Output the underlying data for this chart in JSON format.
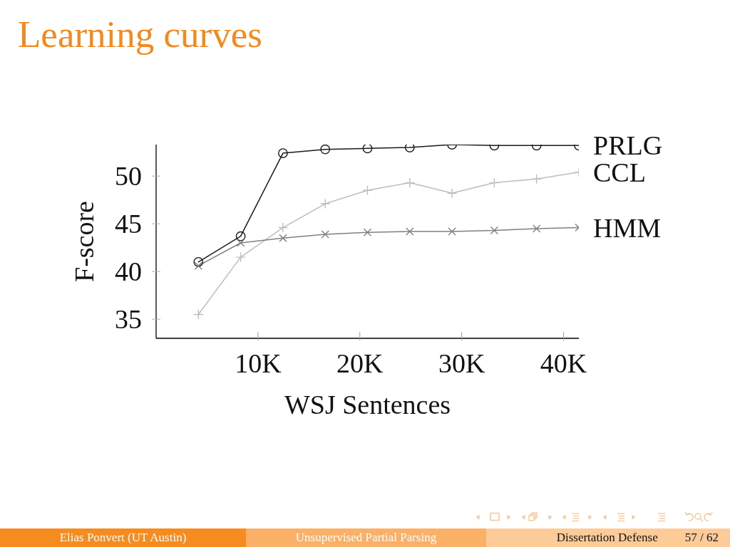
{
  "chart_data": {
    "type": "line",
    "title": "Learning curves",
    "xlabel": "WSJ Sentences",
    "ylabel": "F-score",
    "x": [
      4150,
      8300,
      12450,
      16600,
      20750,
      24900,
      29050,
      33200,
      37350,
      41500
    ],
    "xlim": [
      0,
      41500
    ],
    "xticks": [
      {
        "value": 10000,
        "label": "10K"
      },
      {
        "value": 20000,
        "label": "20K"
      },
      {
        "value": 30000,
        "label": "30K"
      },
      {
        "value": 40000,
        "label": "40K"
      }
    ],
    "ylim": [
      33,
      53.3
    ],
    "yticks": [
      35,
      40,
      45,
      50
    ],
    "series": [
      {
        "name": "PRLG",
        "color": "#1a1a1a",
        "marker": "circle",
        "values": [
          41.0,
          43.7,
          52.4,
          52.8,
          52.9,
          53.0,
          53.3,
          53.2,
          53.2,
          53.2
        ]
      },
      {
        "name": "CCL",
        "color": "#bdbdbd",
        "marker": "plus",
        "values": [
          35.5,
          41.5,
          44.6,
          47.1,
          48.5,
          49.3,
          48.2,
          49.3,
          49.7,
          50.4
        ]
      },
      {
        "name": "HMM",
        "color": "#808080",
        "marker": "cross",
        "values": [
          40.6,
          43.0,
          43.5,
          43.9,
          44.1,
          44.2,
          44.2,
          44.3,
          44.5,
          44.6
        ]
      }
    ],
    "annotations": [
      "Elias Ponvert  (UT Austin)",
      "Unsupervised Partial Parsing",
      "Dissertation Defense",
      "57 / 62"
    ]
  }
}
